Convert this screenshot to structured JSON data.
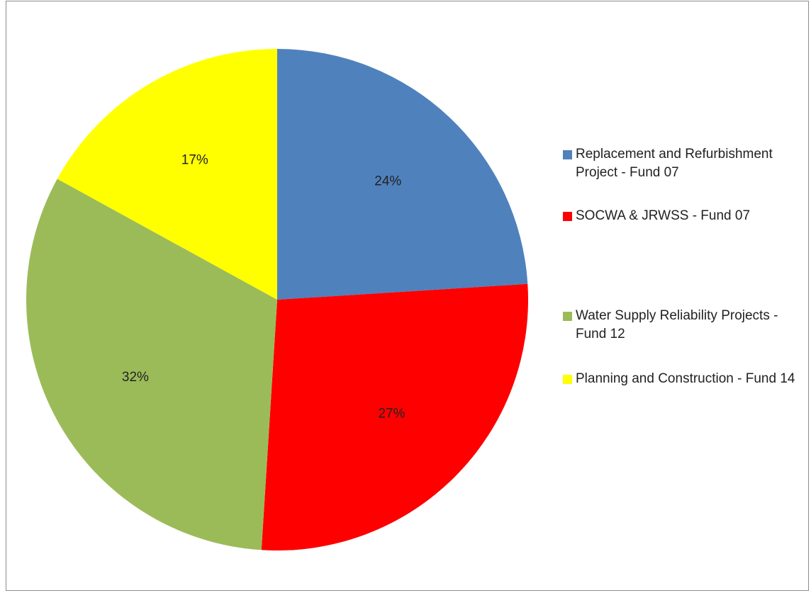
{
  "chart_data": {
    "type": "pie",
    "title": "",
    "categories": [
      "Replacement and Refurbishment Project - Fund 07",
      "SOCWA & JRWSS - Fund 07",
      "Water Supply Reliability Projects - Fund 12",
      "Planning and Construction - Fund 14"
    ],
    "values": [
      24,
      27,
      32,
      17
    ],
    "labels": [
      "24%",
      "27%",
      "32%",
      "17%"
    ],
    "colors": [
      "#4F81BD",
      "#FF0000",
      "#9BBB59",
      "#FFFF00"
    ],
    "start_angle": "12 o'clock",
    "direction": "clockwise",
    "legend": "right"
  }
}
